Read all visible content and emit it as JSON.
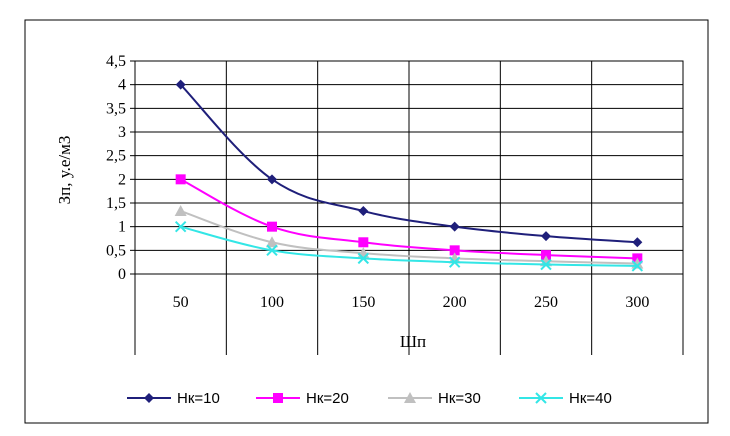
{
  "chart_data": {
    "type": "line",
    "xlabel": "Шп",
    "ylabel": "Зп, у.е/м3",
    "categories": [
      "50",
      "100",
      "150",
      "200",
      "250",
      "300"
    ],
    "ylim": [
      0,
      4.5
    ],
    "y_ticks": [
      "0",
      "0,5",
      "1",
      "1,5",
      "2",
      "2,5",
      "3",
      "3,5",
      "4",
      "4,5"
    ],
    "grid": true,
    "legend_position": "bottom",
    "series": [
      {
        "name": "Нк=10",
        "values": [
          4.0,
          2.0,
          1.33,
          1.0,
          0.8,
          0.67
        ],
        "color": "#1f1f7a",
        "marker": "diamond"
      },
      {
        "name": "Нк=20",
        "values": [
          2.0,
          1.0,
          0.67,
          0.5,
          0.4,
          0.33
        ],
        "color": "#ff00ff",
        "marker": "square"
      },
      {
        "name": "Нк=30",
        "values": [
          1.33,
          0.67,
          0.44,
          0.33,
          0.27,
          0.22
        ],
        "color": "#c0c0c0",
        "marker": "triangle"
      },
      {
        "name": "Нк=40",
        "values": [
          1.0,
          0.5,
          0.33,
          0.25,
          0.2,
          0.17
        ],
        "color": "#33e6e6",
        "marker": "x"
      }
    ]
  }
}
